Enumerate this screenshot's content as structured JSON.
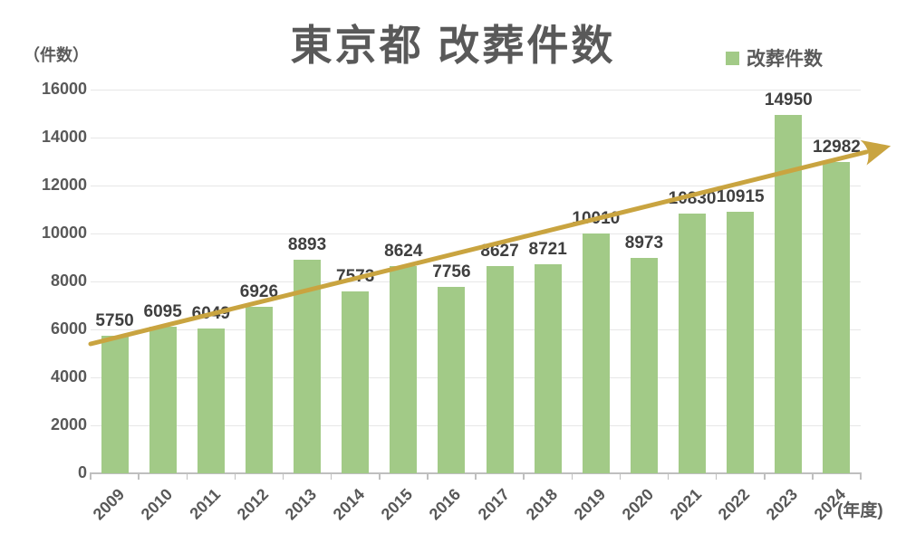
{
  "chart_data": {
    "type": "bar",
    "title": "東京都 改葬件数",
    "legend": "改葬件数",
    "series_name": "改葬件数",
    "y_axis_unit": "（件数）",
    "x_axis_unit": "(年度)",
    "categories": [
      "2009",
      "2010",
      "2011",
      "2012",
      "2013",
      "2014",
      "2015",
      "2016",
      "2017",
      "2018",
      "2019",
      "2020",
      "2021",
      "2022",
      "2023",
      "2024"
    ],
    "values": [
      5750,
      6095,
      6049,
      6926,
      8893,
      7573,
      8624,
      7756,
      8627,
      8721,
      10010,
      8973,
      10830,
      10915,
      14950,
      12982
    ],
    "ylim": [
      0,
      16000
    ],
    "y_ticks": [
      0,
      2000,
      4000,
      6000,
      8000,
      10000,
      12000,
      14000,
      16000
    ],
    "grid": "horizontal",
    "legend_position": "top-right",
    "data_labels": "above-bars",
    "colors": {
      "bar": "#A2CA87",
      "trend_arrow": "#C9A440",
      "title_text": "#595959",
      "value_label_text": "#3F3F3F",
      "axis_text": "#595959",
      "gridline": "#E7E7E7",
      "axis_line": "#BFBFBF"
    },
    "annotations": [
      {
        "type": "arrow",
        "meaning": "upward trend across all years",
        "color": "#C9A440"
      }
    ]
  }
}
